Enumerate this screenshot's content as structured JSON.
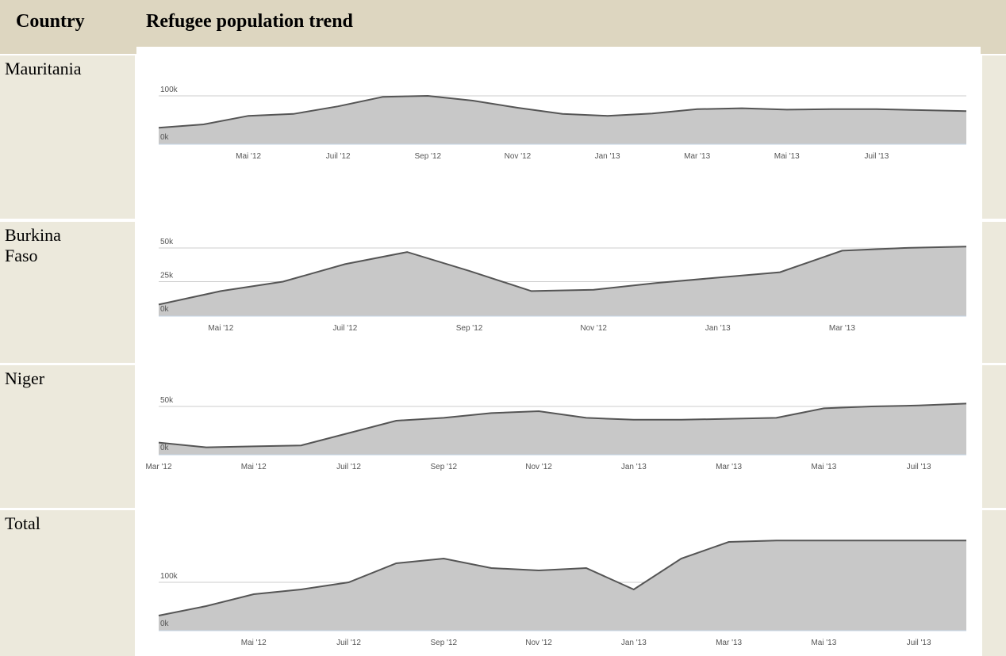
{
  "table": {
    "header": [
      "Country",
      "Refugee population trend"
    ],
    "rows": [
      [
        "Mauritania"
      ],
      [
        "Burkina Faso"
      ],
      [
        "Niger"
      ],
      [
        "Total"
      ]
    ]
  },
  "chart_data": [
    {
      "type": "area",
      "color": "#c8c8c8",
      "line_color": "#555555",
      "grid": true,
      "x": [
        "2012-03",
        "2012-04",
        "2012-05",
        "2012-06",
        "2012-07",
        "2012-08",
        "2012-09",
        "2012-10",
        "2012-11",
        "2012-12",
        "2013-01",
        "2013-02",
        "2013-03",
        "2013-04",
        "2013-05",
        "2013-06",
        "2013-07",
        "2013-08",
        "2013-09"
      ],
      "values": [
        33000,
        40000,
        58000,
        62000,
        78000,
        98000,
        100000,
        90000,
        75000,
        62000,
        58000,
        63000,
        72000,
        74000,
        71000,
        72000,
        72000,
        70000,
        68000
      ],
      "xlim": [
        "2012-03",
        "2013-09"
      ],
      "ylim": [
        0,
        170000
      ],
      "yticks": [
        {
          "value": 0,
          "label": "0k"
        },
        {
          "value": 100000,
          "label": "100k"
        }
      ],
      "xticks": [
        {
          "value": "2012-05",
          "label": "Mai '12"
        },
        {
          "value": "2012-07",
          "label": "Juil '12"
        },
        {
          "value": "2012-09",
          "label": "Sep '12"
        },
        {
          "value": "2012-11",
          "label": "Nov '12"
        },
        {
          "value": "2013-01",
          "label": "Jan '13"
        },
        {
          "value": "2013-03",
          "label": "Mar '13"
        },
        {
          "value": "2013-05",
          "label": "Mai '13"
        },
        {
          "value": "2013-07",
          "label": "Juil '13"
        }
      ]
    },
    {
      "type": "area",
      "color": "#c8c8c8",
      "line_color": "#555555",
      "grid": true,
      "x": [
        "2012-04",
        "2012-05",
        "2012-06",
        "2012-07",
        "2012-08",
        "2012-09",
        "2012-10",
        "2012-11",
        "2012-12",
        "2013-01",
        "2013-02",
        "2013-03",
        "2013-04",
        "2013-05"
      ],
      "values": [
        8000,
        18000,
        25000,
        38000,
        47000,
        33000,
        18000,
        19000,
        24000,
        28000,
        32000,
        48000,
        50000,
        51000
      ],
      "xlim": [
        "2012-04",
        "2013-05"
      ],
      "ylim": [
        0,
        60000
      ],
      "yticks": [
        {
          "value": 0,
          "label": "0k"
        },
        {
          "value": 25000,
          "label": "25k"
        },
        {
          "value": 50000,
          "label": "50k"
        }
      ],
      "xticks": [
        {
          "value": "2012-05",
          "label": "Mai '12"
        },
        {
          "value": "2012-07",
          "label": "Juil '12"
        },
        {
          "value": "2012-09",
          "label": "Sep '12"
        },
        {
          "value": "2012-11",
          "label": "Nov '12"
        },
        {
          "value": "2013-01",
          "label": "Jan '13"
        },
        {
          "value": "2013-03",
          "label": "Mar '13"
        }
      ]
    },
    {
      "type": "area",
      "color": "#c8c8c8",
      "line_color": "#555555",
      "grid": true,
      "x": [
        "2012-03",
        "2012-04",
        "2012-05",
        "2012-06",
        "2012-07",
        "2012-08",
        "2012-09",
        "2012-10",
        "2012-11",
        "2012-12",
        "2013-01",
        "2013-02",
        "2013-03",
        "2013-04",
        "2013-05",
        "2013-06",
        "2013-07",
        "2013-08"
      ],
      "values": [
        12000,
        7000,
        8000,
        9000,
        22000,
        35000,
        38000,
        43000,
        45000,
        38000,
        36000,
        36000,
        37000,
        38000,
        48000,
        50000,
        51000,
        53000
      ],
      "xlim": [
        "2012-03",
        "2013-08"
      ],
      "ylim": [
        0,
        70000
      ],
      "yticks": [
        {
          "value": 0,
          "label": "0k"
        },
        {
          "value": 50000,
          "label": "50k"
        }
      ],
      "xticks": [
        {
          "value": "2012-03",
          "label": "Mar '12"
        },
        {
          "value": "2012-05",
          "label": "Mai '12"
        },
        {
          "value": "2012-07",
          "label": "Juil '12"
        },
        {
          "value": "2012-09",
          "label": "Sep '12"
        },
        {
          "value": "2012-11",
          "label": "Nov '12"
        },
        {
          "value": "2013-01",
          "label": "Jan '13"
        },
        {
          "value": "2013-03",
          "label": "Mar '13"
        },
        {
          "value": "2013-05",
          "label": "Mai '13"
        },
        {
          "value": "2013-07",
          "label": "Juil '13"
        }
      ]
    },
    {
      "type": "area",
      "color": "#c8c8c8",
      "line_color": "#555555",
      "grid": true,
      "x": [
        "2012-03",
        "2012-04",
        "2012-05",
        "2012-06",
        "2012-07",
        "2012-08",
        "2012-09",
        "2012-10",
        "2012-11",
        "2012-12",
        "2013-01",
        "2013-02",
        "2013-03",
        "2013-04",
        "2013-05",
        "2013-06",
        "2013-07",
        "2013-08"
      ],
      "values": [
        30000,
        50000,
        75000,
        85000,
        100000,
        140000,
        150000,
        130000,
        125000,
        130000,
        85000,
        150000,
        185000,
        188000,
        188000,
        188000,
        188000,
        188000
      ],
      "xlim": [
        "2012-03",
        "2013-08"
      ],
      "ylim": [
        0,
        250000
      ],
      "yticks": [
        {
          "value": 0,
          "label": "0k"
        },
        {
          "value": 100000,
          "label": "100k"
        }
      ],
      "xticks": [
        {
          "value": "2012-05",
          "label": "Mai '12"
        },
        {
          "value": "2012-07",
          "label": "Juil '12"
        },
        {
          "value": "2012-09",
          "label": "Sep '12"
        },
        {
          "value": "2012-11",
          "label": "Nov '12"
        },
        {
          "value": "2013-01",
          "label": "Jan '13"
        },
        {
          "value": "2013-03",
          "label": "Mar '13"
        },
        {
          "value": "2013-05",
          "label": "Mai '13"
        },
        {
          "value": "2013-07",
          "label": "Juil '13"
        }
      ]
    }
  ]
}
